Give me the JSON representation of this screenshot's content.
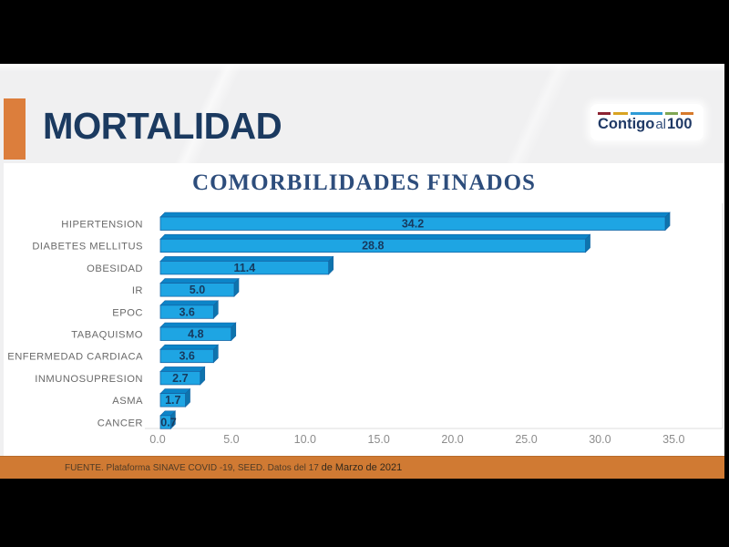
{
  "header": {
    "title": "MORTALIDAD",
    "logo": {
      "word1": "Contigo",
      "word2": "al",
      "word3": "100",
      "dash_colors": [
        "#8c2332",
        "#d9a321",
        "#2e9bd6",
        "#7fa653",
        "#d77a2b"
      ],
      "dash_widths": [
        14,
        16,
        35,
        14,
        14
      ]
    },
    "accent_color": "#dc7e3c"
  },
  "chart_data": {
    "type": "bar",
    "orientation": "horizontal",
    "title": "COMORBILIDADES FINADOS",
    "categories": [
      "HIPERTENSION",
      "DIABETES MELLITUS",
      "OBESIDAD",
      "IR",
      "EPOC",
      "TABAQUISMO",
      "ENFERMEDAD CARDIACA",
      "INMUNOSUPRESION",
      "ASMA",
      "CANCER"
    ],
    "values": [
      34.2,
      28.8,
      11.4,
      5.0,
      3.6,
      4.8,
      3.6,
      2.7,
      1.7,
      0.7
    ],
    "xticks": [
      "0.0",
      "5.0",
      "10.0",
      "15.0",
      "20.0",
      "25.0",
      "30.0",
      "35.0"
    ],
    "xlim": [
      0,
      38.2
    ],
    "grid": false,
    "legend": false,
    "bar_color": "#1ea5e3",
    "bar_top_color": "#0c85c8",
    "bar_side_color": "#0e74ad",
    "bar_border_color": "#1464a5",
    "value_label_color": "#173a5e",
    "category_label_color": "#6a6a6a",
    "tick_label_color": "#8c8c8c"
  },
  "footer": {
    "source_prefix": "FUENTE. Plataforma SINAVE COVID -19, SEED. Datos del 17 ",
    "source_suffix": "de Marzo de 2021",
    "strip_color": "#d07a33"
  }
}
